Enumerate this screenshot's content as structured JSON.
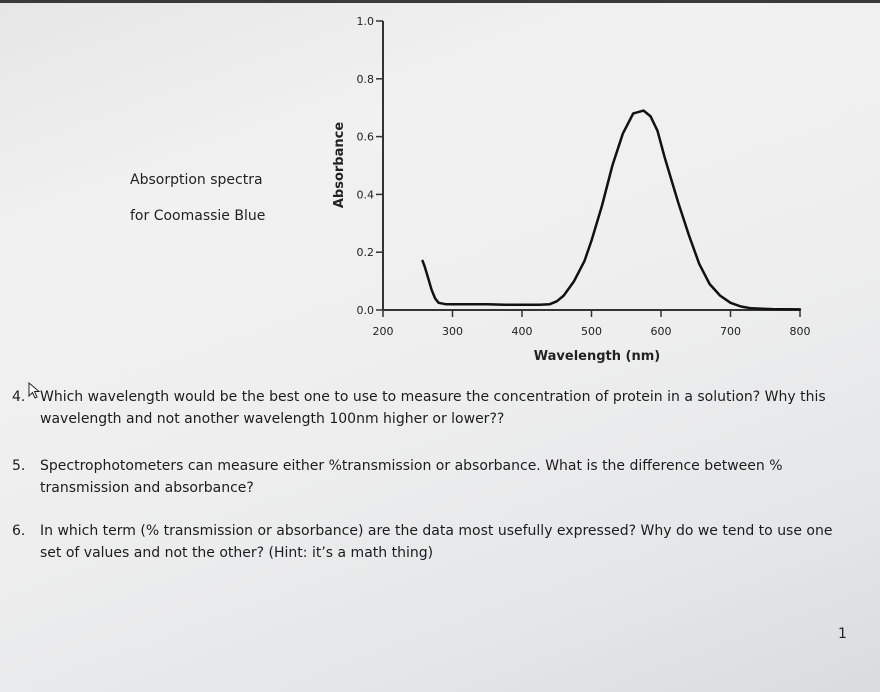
{
  "caption": {
    "line1": "Absorption spectra",
    "line2": "for Coomassie Blue"
  },
  "chart_data": {
    "type": "line",
    "title": "",
    "xlabel": "Wavelength (nm)",
    "ylabel": "Absorbance",
    "xlim": [
      200,
      800
    ],
    "ylim": [
      0.0,
      1.0
    ],
    "x_ticks": [
      200,
      300,
      400,
      500,
      600,
      700,
      800
    ],
    "y_ticks": [
      0.0,
      0.2,
      0.4,
      0.6,
      0.8,
      1.0
    ],
    "x_tick_labels": [
      "200",
      "300",
      "400",
      "500",
      "600",
      "700",
      "800"
    ],
    "y_tick_labels": [
      "0.0",
      "0.2",
      "0.4",
      "0.6",
      "0.8",
      "1.0"
    ],
    "grid": false,
    "line_color": "#111111",
    "series": [
      {
        "x": [
          257,
          260,
          265,
          270,
          275,
          280,
          290,
          300,
          325,
          350,
          375,
          400,
          425,
          440,
          450,
          460,
          475,
          490,
          500,
          515,
          530,
          545,
          560,
          575,
          585,
          595,
          605,
          615,
          625,
          640,
          655,
          670,
          685,
          700,
          715,
          730,
          760,
          800
        ],
        "y": [
          0.17,
          0.15,
          0.11,
          0.07,
          0.04,
          0.025,
          0.02,
          0.02,
          0.02,
          0.02,
          0.018,
          0.018,
          0.018,
          0.02,
          0.03,
          0.05,
          0.1,
          0.17,
          0.24,
          0.36,
          0.5,
          0.61,
          0.68,
          0.69,
          0.67,
          0.62,
          0.53,
          0.45,
          0.37,
          0.26,
          0.16,
          0.09,
          0.05,
          0.025,
          0.012,
          0.006,
          0.003,
          0.002
        ]
      }
    ]
  },
  "questions": [
    {
      "number": "4.",
      "text": "Which wavelength would be the best one to use to measure the concentration of protein in a solution? Why this wavelength and not another wavelength 100nm higher or lower??"
    },
    {
      "number": "5.",
      "text": "Spectrophotometers can measure either %transmission or absorbance. What is the difference between % transmission and absorbance?"
    },
    {
      "number": "6.",
      "text": "In which term (% transmission or absorbance) are the data most usefully expressed? Why do we tend to use one set of values and not the other? (Hint: it’s a math thing)"
    }
  ],
  "page_number": "1"
}
